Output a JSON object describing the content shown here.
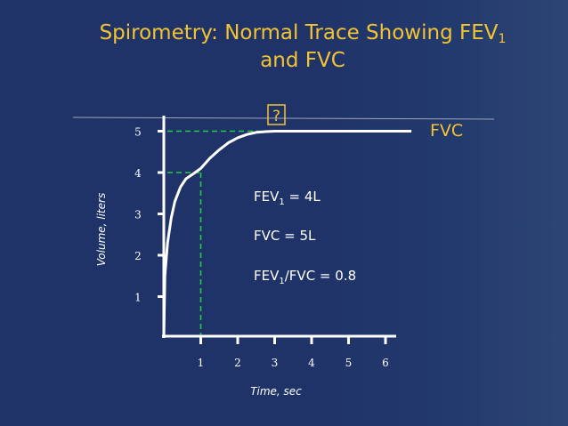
{
  "title": {
    "line1_prefix": "Spirometry:  Normal Trace Showing FEV",
    "line1_sub": "1",
    "line2": "and FVC"
  },
  "chart_data": {
    "type": "line",
    "xlabel": "Time, sec",
    "ylabel": "Volume, liters",
    "x_ticks": [
      1,
      2,
      3,
      4,
      5,
      6
    ],
    "y_ticks": [
      1,
      2,
      3,
      4,
      5
    ],
    "xlim": [
      0,
      6.25
    ],
    "ylim": [
      0,
      5.3
    ],
    "grid": false,
    "series": [
      {
        "name": "",
        "x": [
          0,
          0.03,
          0.1,
          0.2,
          0.3,
          0.45,
          0.6,
          0.8,
          1.0,
          1.25,
          1.5,
          1.75,
          2.0,
          2.25,
          2.5,
          2.75,
          3.0,
          3.25,
          4.0,
          5.0,
          6.7
        ],
        "y": [
          0,
          1.5,
          2.3,
          2.9,
          3.3,
          3.65,
          3.85,
          3.97,
          4.1,
          4.35,
          4.55,
          4.72,
          4.84,
          4.92,
          4.97,
          4.99,
          5.0,
          5.0,
          5.0,
          5.0,
          5.0
        ]
      }
    ],
    "reference_lines": [
      {
        "label": "FEV1",
        "x": 1,
        "y": 4
      },
      {
        "label": "FVC",
        "x": 2.75,
        "y": 5
      }
    ],
    "annotations": {
      "fvc_curve_label": "FVC",
      "question_mark": "?",
      "fev1_prefix": "FEV",
      "fev1_sub": "1",
      "fev1_value": " = 4L",
      "fvc_line": "FVC  = 5L",
      "ratio_prefix": "FEV",
      "ratio_sub": "1",
      "ratio_value": "/FVC = 0.8"
    },
    "colors": {
      "background": "#1f3369",
      "title": "#f4c430",
      "curve": "#ffffff",
      "guide_lines": "#22cc44",
      "accent_line": "#9fa6b6"
    }
  }
}
